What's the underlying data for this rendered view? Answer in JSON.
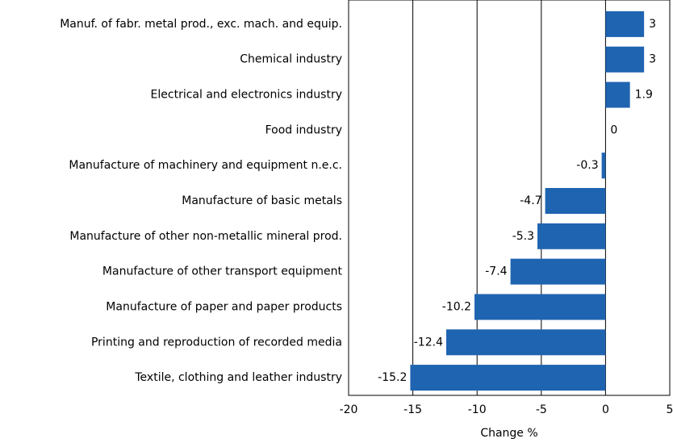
{
  "chart_data": {
    "type": "hbar",
    "categories": [
      "Manuf. of fabr. metal prod., exc. mach. and equip.",
      "Chemical industry",
      "Electrical and electronics industry",
      "Food industry",
      "Manufacture of machinery and equipment n.e.c.",
      "Manufacture of basic metals",
      "Manufacture of other non-metallic mineral prod.",
      "Manufacture of other transport equipment",
      "Manufacture of paper and paper products",
      "Printing and reproduction of recorded media",
      "Textile, clothing and leather industry"
    ],
    "values": [
      3,
      3,
      1.9,
      0,
      -0.3,
      -4.7,
      -5.3,
      -7.4,
      -10.2,
      -12.4,
      -15.2
    ],
    "color": "#1f64b0",
    "xlabel": "Change %",
    "xlim": [
      -20,
      5
    ],
    "xticks": [
      -20,
      -15,
      -10,
      -5,
      0,
      5
    ],
    "grid": true
  }
}
